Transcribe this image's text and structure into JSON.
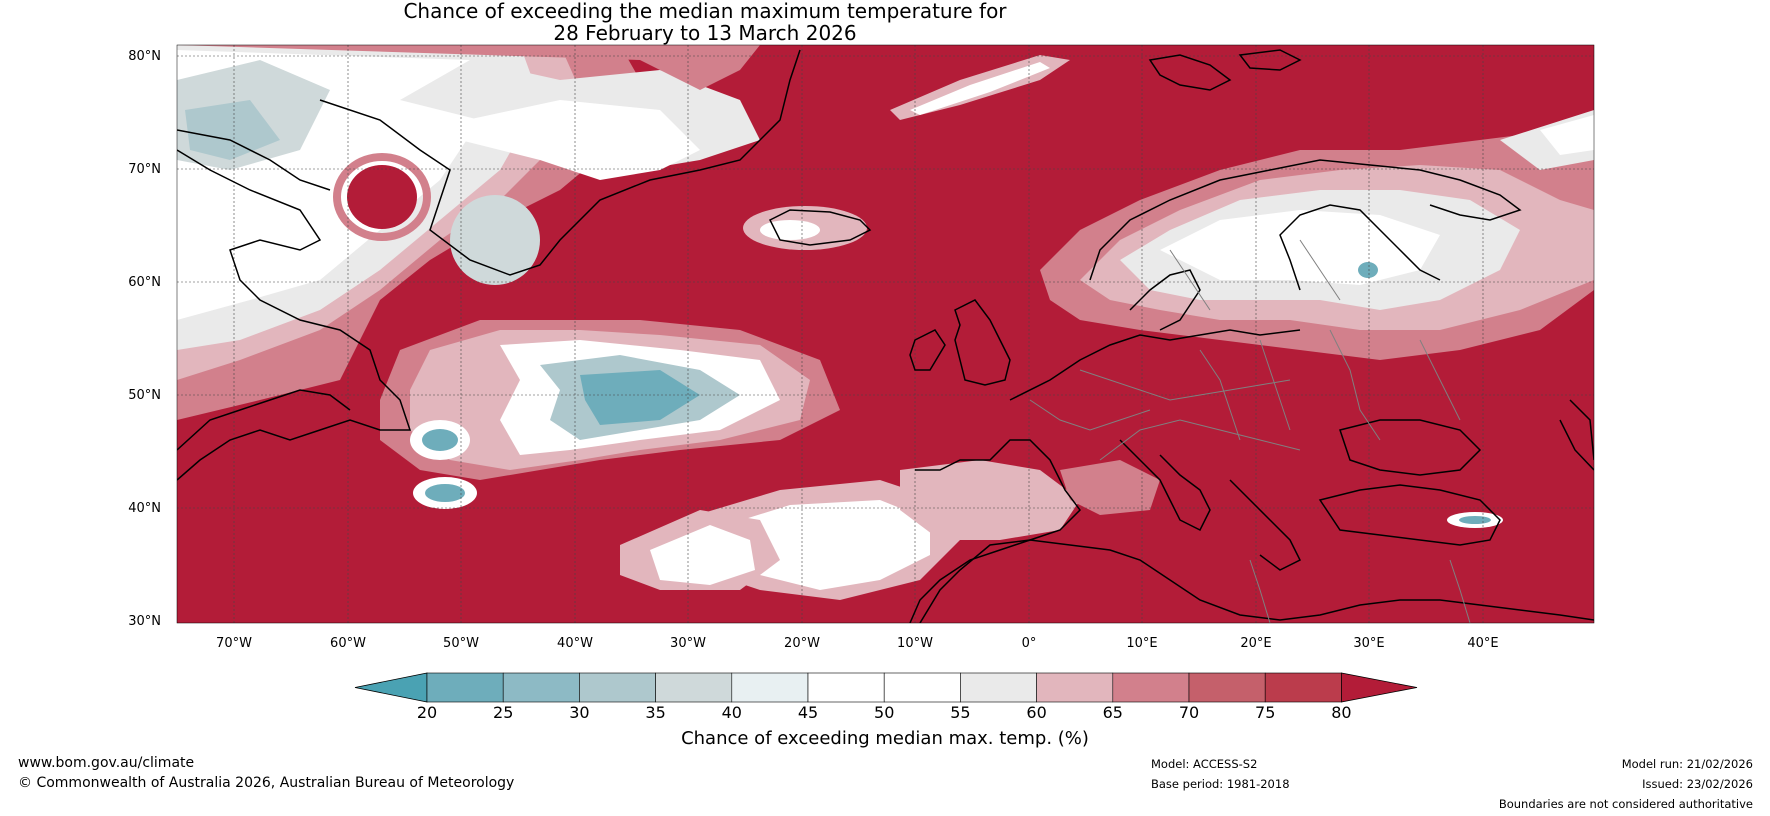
{
  "title_line1": "Chance of exceeding the median maximum temperature for",
  "title_line2": "28 February to 13 March 2026",
  "lat_labels": [
    "80°N",
    "70°N",
    "60°N",
    "50°N",
    "40°N",
    "30°N"
  ],
  "lon_labels": [
    "70°W",
    "60°W",
    "50°W",
    "40°W",
    "30°W",
    "20°W",
    "10°W",
    "0°",
    "10°E",
    "20°E",
    "30°E",
    "40°E"
  ],
  "colorbar": {
    "ticks": [
      "20",
      "25",
      "30",
      "35",
      "40",
      "45",
      "50",
      "55",
      "60",
      "65",
      "70",
      "75",
      "80"
    ],
    "colors": [
      "#4aa2b3",
      "#6eadbb",
      "#8dbac5",
      "#aec8cd",
      "#cfd9da",
      "#e8f0f2",
      "#ffffff",
      "#ffffff",
      "#eaeaea",
      "#e2b6bd",
      "#d2808c",
      "#c5606b",
      "#bb3c4c",
      "#b31c38"
    ],
    "label": "Chance of exceeding median max. temp. (%)"
  },
  "footer": {
    "website": "www.bom.gov.au/climate",
    "copyright": "© Commonwealth of Australia 2026, Australian Bureau of Meteorology",
    "model": "Model: ACCESS-S2",
    "base_period": "Base period: 1981-2018",
    "model_run": "Model run: 21/02/2026",
    "issued": "Issued: 23/02/2026",
    "disclaimer": "Boundaries are not considered authoritative"
  }
}
